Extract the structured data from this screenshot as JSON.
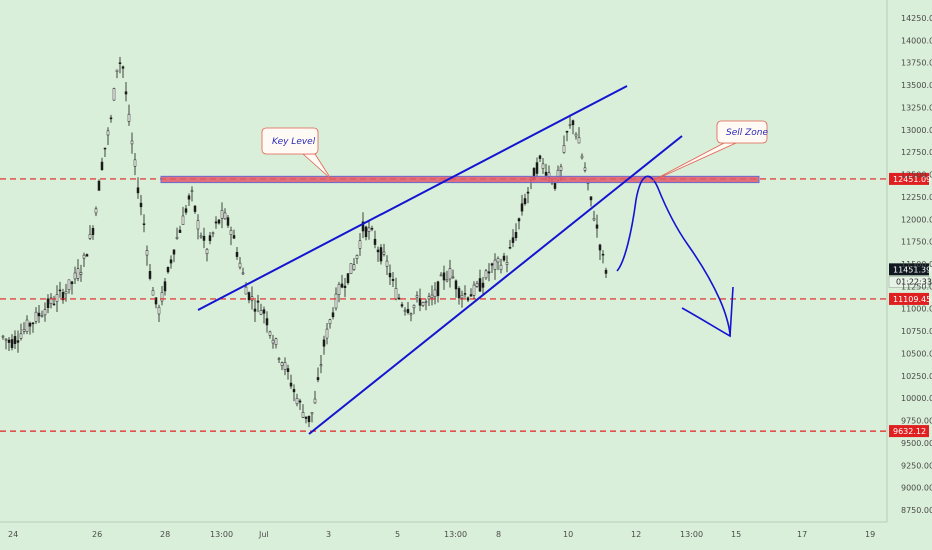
{
  "chart_data": {
    "type": "candlestick",
    "y_axis": {
      "position": "right",
      "ticks": [
        "14250.00",
        "14000.00",
        "13750.00",
        "13500.00",
        "13250.00",
        "13000.00",
        "12750.00",
        "12500.00",
        "12250.00",
        "12000.00",
        "11750.00",
        "11500.00",
        "11250.00",
        "11000.00",
        "10750.00",
        "10500.00",
        "10250.00",
        "10000.00",
        "9750.00",
        "9500.00",
        "9250.00",
        "9000.00",
        "8750.00"
      ],
      "range": [
        8600,
        14400
      ]
    },
    "x_axis": {
      "ticks": [
        "24",
        "26",
        "28",
        "13:00",
        "Jul",
        "3",
        "5",
        "13:00",
        "8",
        "10",
        "12",
        "13:00",
        "15",
        "17",
        "19"
      ]
    },
    "horizontal_levels": [
      {
        "value": 12451.09,
        "label": "12451.09",
        "color": "#e02020",
        "style": "dashed"
      },
      {
        "value": 11109.45,
        "label": "11109.45",
        "color": "#e02020",
        "style": "dashed"
      },
      {
        "value": 9632.12,
        "label": "9632.12",
        "color": "#e02020",
        "style": "dashed"
      }
    ],
    "current_price": {
      "value": 11451.39,
      "label": "11451.39",
      "countdown": "01:22:33"
    },
    "annotations": [
      {
        "kind": "zone",
        "name": "Key Level",
        "top": 12480,
        "bottom": 12410,
        "color": "#e05a6a"
      },
      {
        "kind": "callout",
        "text": "Key Level"
      },
      {
        "kind": "callout",
        "text": "Sell Zone"
      }
    ],
    "colors": {
      "background": "#d9efd9",
      "candles": "#1a1a1a",
      "trendlines": "#1414d2",
      "levels": "#e02020"
    }
  }
}
